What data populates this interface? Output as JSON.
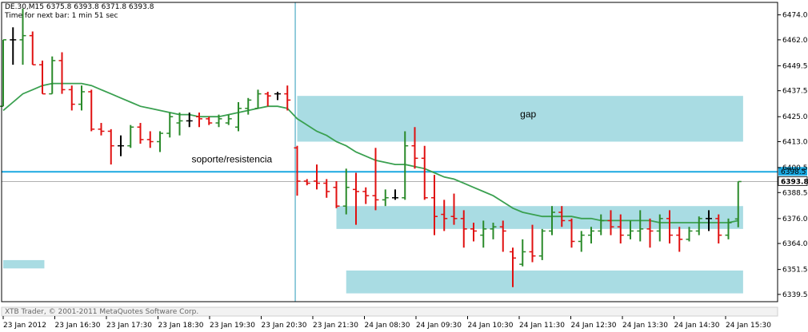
{
  "header": {
    "symbol_line": "DE.30,M15  6375.8 6393.8 6371.8 6393.8",
    "timer_line": "Time for next bar: 1 min 51 sec"
  },
  "footer": {
    "copyright": "XTB Trader, © 2001-2011 MetaQuotes Software Corp."
  },
  "colors": {
    "bull": "#2a8a2a",
    "bear": "#e01010",
    "ma": "#3aa050",
    "zone": "#a9dce3",
    "level_line": "#1aa8e0",
    "cursor_line": "#2a9ab8",
    "price_badge_bg": "#1aa8e0",
    "current_badge_bg": "#ffffff"
  },
  "chart_data": {
    "type": "ohlc",
    "title": "",
    "ylim": [
      6336,
      6480
    ],
    "y_ticks": [
      6474.0,
      6462.0,
      6449.5,
      6437.5,
      6425.0,
      6413.0,
      6400.5,
      6388.5,
      6376.0,
      6364.0,
      6351.5,
      6339.5
    ],
    "x_tick_labels": [
      "23 Jan 2012",
      "23 Jan 16:30",
      "23 Jan 17:30",
      "23 Jan 18:30",
      "23 Jan 19:30",
      "23 Jan 20:30",
      "23 Jan 21:30",
      "24 Jan 08:30",
      "24 Jan 09:30",
      "24 Jan 10:30",
      "24 Jan 11:30",
      "24 Jan 12:30",
      "24 Jan 13:30",
      "24 Jan 14:30",
      "24 Jan 15:30"
    ],
    "ohlc": [
      [
        6430,
        6462,
        6430,
        6462
      ],
      [
        6462,
        6468,
        6450,
        6462
      ],
      [
        6462,
        6477,
        6450,
        6464
      ],
      [
        6464,
        6466,
        6450,
        6450
      ],
      [
        6450,
        6452,
        6436,
        6436
      ],
      [
        6436,
        6454,
        6436,
        6452
      ],
      [
        6452,
        6456,
        6436,
        6438
      ],
      [
        6438,
        6440,
        6428,
        6431
      ],
      [
        6431,
        6440,
        6428,
        6437
      ],
      [
        6437,
        6438,
        6418,
        6419
      ],
      [
        6419,
        6422,
        6416,
        6418
      ],
      [
        6418,
        6419,
        6402,
        6411
      ],
      [
        6411,
        6416,
        6406,
        6411
      ],
      [
        6411,
        6421,
        6410,
        6420
      ],
      [
        6420,
        6422,
        6412,
        6414
      ],
      [
        6414,
        6418,
        6410,
        6413
      ],
      [
        6413,
        6418,
        6408,
        6417
      ],
      [
        6417,
        6427,
        6415,
        6425
      ],
      [
        6422,
        6427,
        6416,
        6423
      ],
      [
        6423,
        6427,
        6420,
        6423
      ],
      [
        6425,
        6427,
        6420,
        6424
      ],
      [
        6424,
        6425,
        6421,
        6422
      ],
      [
        6422,
        6426,
        6420,
        6424
      ],
      [
        6422,
        6426,
        6421,
        6424
      ],
      [
        6420,
        6432,
        6418,
        6429
      ],
      [
        6429,
        6434,
        6426,
        6433
      ],
      [
        6429,
        6438,
        6429,
        6436
      ],
      [
        6436,
        6437,
        6430,
        6435
      ],
      [
        6436,
        6437,
        6433,
        6436
      ],
      [
        6436,
        6440,
        6428,
        6433
      ],
      [
        6410,
        6411,
        6387,
        6394
      ],
      [
        6394,
        6395,
        6392,
        6393
      ],
      [
        6394,
        6402,
        6390,
        6393
      ],
      [
        6393,
        6395,
        6386,
        6389
      ],
      [
        6391,
        6394,
        6381,
        6382
      ],
      [
        6382,
        6400,
        6378,
        6391
      ],
      [
        6390,
        6398,
        6373,
        6389
      ],
      [
        6389,
        6391,
        6383,
        6387
      ],
      [
        6387,
        6410,
        6380,
        6385
      ],
      [
        6385,
        6390,
        6382,
        6386
      ],
      [
        6386,
        6390,
        6385,
        6386
      ],
      [
        6386,
        6418,
        6385,
        6411
      ],
      [
        6411,
        6420,
        6400,
        6405
      ],
      [
        6405,
        6411,
        6385,
        6386
      ],
      [
        6386,
        6397,
        6368,
        6377
      ],
      [
        6378,
        6385,
        6370,
        6376
      ],
      [
        6377,
        6388,
        6373,
        6376
      ],
      [
        6376,
        6380,
        6362,
        6371
      ],
      [
        6371,
        6374,
        6365,
        6370
      ],
      [
        6368,
        6375,
        6362,
        6371
      ],
      [
        6371,
        6374,
        6366,
        6372
      ],
      [
        6372,
        6375,
        6360,
        6370
      ],
      [
        6360,
        6362,
        6343,
        6357
      ],
      [
        6354,
        6366,
        6353,
        6360
      ],
      [
        6360,
        6373,
        6355,
        6358
      ],
      [
        6358,
        6371,
        6356,
        6370
      ],
      [
        6370,
        6382,
        6368,
        6379
      ],
      [
        6379,
        6382,
        6372,
        6375
      ],
      [
        6375,
        6376,
        6362,
        6365
      ],
      [
        6365,
        6370,
        6360,
        6368
      ],
      [
        6368,
        6372,
        6364,
        6370
      ],
      [
        6370,
        6378,
        6368,
        6375
      ],
      [
        6375,
        6380,
        6368,
        6372
      ],
      [
        6372,
        6378,
        6364,
        6368
      ],
      [
        6368,
        6375,
        6366,
        6370
      ],
      [
        6370,
        6380,
        6365,
        6371
      ],
      [
        6371,
        6376,
        6362,
        6370
      ],
      [
        6370,
        6378,
        6365,
        6376
      ],
      [
        6376,
        6380,
        6364,
        6368
      ],
      [
        6368,
        6372,
        6360,
        6366
      ],
      [
        6366,
        6372,
        6365,
        6370
      ],
      [
        6370,
        6377,
        6368,
        6376
      ],
      [
        6376,
        6380,
        6370,
        6376
      ],
      [
        6376,
        6378,
        6364,
        6368
      ],
      [
        6368,
        6376,
        6366,
        6374
      ],
      [
        6375.8,
        6393.8,
        6371.8,
        6393.8
      ]
    ],
    "ma": [
      6428,
      6432,
      6436,
      6438,
      6440,
      6441,
      6441,
      6441,
      6441,
      6440,
      6438,
      6436,
      6434,
      6432,
      6430,
      6429,
      6428,
      6427,
      6426,
      6426,
      6425,
      6425,
      6425,
      6426,
      6427,
      6428,
      6429,
      6430,
      6430,
      6429,
      6424,
      6421,
      6418,
      6416,
      6413,
      6411,
      6408,
      6406,
      6404,
      6403,
      6402,
      6402,
      6401,
      6400,
      6398,
      6396,
      6395,
      6393,
      6391,
      6389,
      6387,
      6384,
      6381,
      6379,
      6378,
      6377,
      6377,
      6377,
      6377,
      6376,
      6376,
      6375,
      6375,
      6375,
      6375,
      6375,
      6375,
      6374,
      6374,
      6374,
      6374,
      6374,
      6374,
      6374,
      6374,
      6375
    ],
    "levels": [
      {
        "price": 6398.5,
        "label": "6398.5"
      }
    ],
    "current_price": {
      "price": 6393.8,
      "label": "6393.8"
    },
    "zones": [
      {
        "bar_from": 30,
        "bar_to": 75.5,
        "price_from": 6413,
        "price_to": 6435,
        "label": "gap"
      },
      {
        "bar_from": 34,
        "bar_to": 75.5,
        "price_from": 6371,
        "price_to": 6382
      },
      {
        "bar_from": 35,
        "bar_to": 75.5,
        "price_from": 6340,
        "price_to": 6351
      },
      {
        "bar_from": 0,
        "bar_to": 4.2,
        "price_from": 6352,
        "price_to": 6356
      }
    ],
    "annotations": [
      {
        "text": "soporte/resistencia",
        "bar": 18,
        "price": 6403
      }
    ],
    "cursor_bar": 29.8
  }
}
